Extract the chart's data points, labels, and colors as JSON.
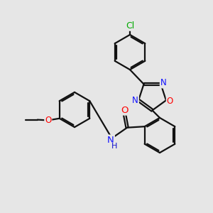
{
  "bg_color": "#e6e6e6",
  "bond_color": "#111111",
  "bond_width": 1.6,
  "dbo": 0.07,
  "atom_colors": {
    "N": "#1010ff",
    "O": "#ff0000",
    "Cl": "#00aa00",
    "H": "#1010cc"
  },
  "fs": 8.5
}
